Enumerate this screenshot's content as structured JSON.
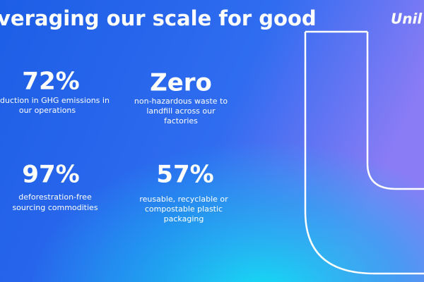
{
  "header": {
    "title": "veraging our scale for good",
    "logo": "Unil"
  },
  "stats": [
    {
      "figure": "72%",
      "lines": [
        "duction in GHG emissions in",
        "our operations"
      ]
    },
    {
      "figure": "Zero",
      "lines": [
        "non-hazardous waste to",
        "landfill across our",
        "factories"
      ]
    },
    {
      "figure": "97%",
      "lines": [
        "deforestration-free",
        "sourcing commodities"
      ]
    },
    {
      "figure": "57%",
      "lines": [
        "reusable, recyclable or",
        "compostable plastic",
        "packaging"
      ]
    }
  ]
}
